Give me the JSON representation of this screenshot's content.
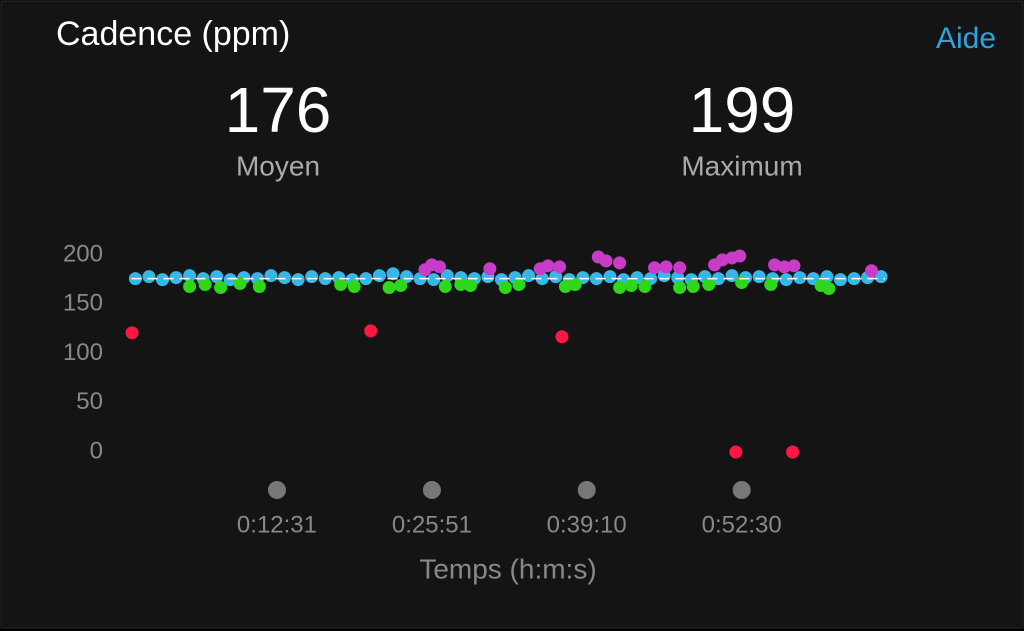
{
  "header": {
    "title": "Cadence (ppm)",
    "help": "Aide"
  },
  "stats": [
    {
      "value": 176,
      "label": "Moyen"
    },
    {
      "value": 199,
      "label": "Maximum"
    }
  ],
  "chart_data": {
    "type": "scatter",
    "x_label": "Temps (h:m:s)",
    "xlim": [
      0,
      3890
    ],
    "ylim": [
      0,
      200
    ],
    "xticks": [
      {
        "value": 751,
        "label": "0:12:31"
      },
      {
        "value": 1551,
        "label": "0:25:51"
      },
      {
        "value": 2350,
        "label": "0:39:10"
      },
      {
        "value": 3150,
        "label": "0:52:30"
      }
    ],
    "yticks": [
      0,
      50,
      100,
      150,
      200
    ],
    "series": [
      {
        "color": "#35b8e8",
        "x": [
          20,
          90,
          160,
          230,
          300,
          370,
          440,
          510,
          580,
          650,
          720,
          790,
          860,
          930,
          1000,
          1070,
          1140,
          1210,
          1280,
          1350,
          1420,
          1490,
          1560,
          1630,
          1700,
          1770,
          1840,
          1910,
          1980,
          2050,
          2120,
          2190,
          2260,
          2330,
          2400,
          2470,
          2540,
          2610,
          2680,
          2750,
          2820,
          2890,
          2960,
          3030,
          3100,
          3170,
          3240,
          3310,
          3380,
          3450,
          3520,
          3590,
          3660,
          3730,
          3800,
          3870
        ],
        "values": [
          176,
          178,
          175,
          177,
          179,
          176,
          178,
          175,
          177,
          176,
          179,
          177,
          175,
          178,
          176,
          177,
          175,
          176,
          179,
          181,
          178,
          176,
          175,
          179,
          177,
          176,
          178,
          175,
          177,
          179,
          176,
          178,
          175,
          177,
          176,
          178,
          175,
          177,
          176,
          179,
          177,
          175,
          178,
          176,
          179,
          177,
          178,
          176,
          175,
          177,
          176,
          178,
          175,
          176,
          177,
          178
        ]
      },
      {
        "color": "#2fd61a",
        "x": [
          300,
          380,
          460,
          560,
          660,
          1080,
          1150,
          1330,
          1390,
          1620,
          1700,
          1750,
          1930,
          2000,
          2240,
          2290,
          2520,
          2580,
          2650,
          2830,
          2900,
          2980,
          3150,
          3300,
          3560,
          3600
        ],
        "values": [
          168,
          170,
          167,
          171,
          168,
          170,
          168,
          167,
          169,
          168,
          170,
          169,
          167,
          170,
          168,
          170,
          167,
          169,
          168,
          167,
          168,
          170,
          172,
          170,
          169,
          166
        ]
      },
      {
        "color": "#c83cc8",
        "x": [
          1515,
          1550,
          1590,
          1850,
          2110,
          2150,
          2210,
          2410,
          2450,
          2520,
          2700,
          2760,
          2830,
          3010,
          3050,
          3100,
          3140,
          3320,
          3370,
          3420,
          3820
        ],
        "values": [
          185,
          190,
          188,
          186,
          186,
          189,
          188,
          198,
          194,
          192,
          187,
          188,
          187,
          190,
          195,
          197,
          199,
          190,
          188,
          189,
          184
        ]
      },
      {
        "color": "#ff1744",
        "x": [
          3,
          1235,
          2222,
          3120,
          3413
        ],
        "values": [
          121,
          123,
          117,
          0,
          0
        ]
      }
    ]
  }
}
